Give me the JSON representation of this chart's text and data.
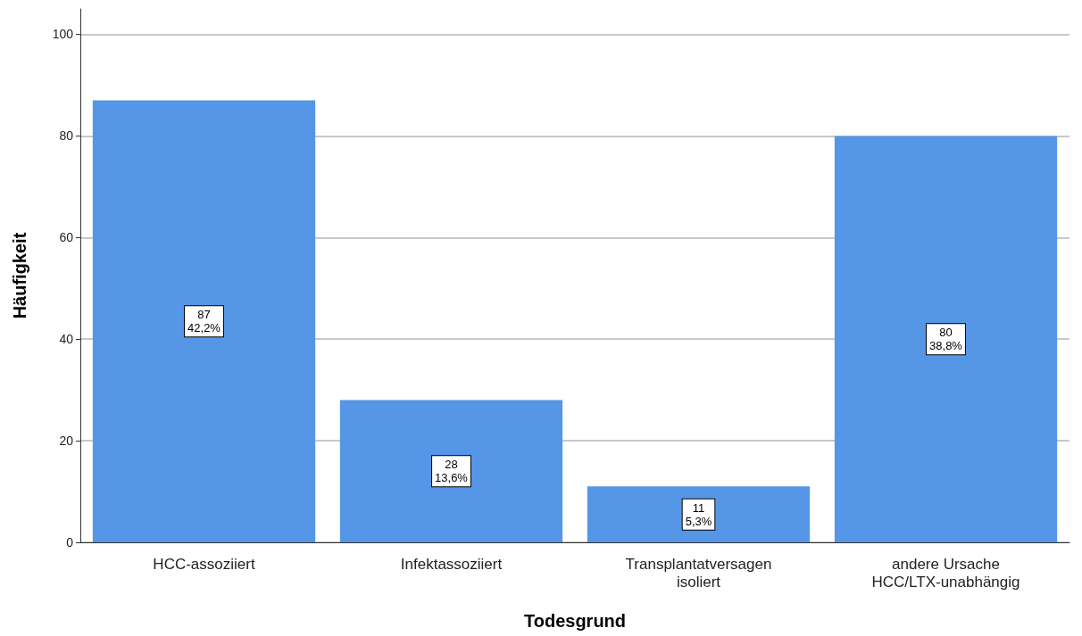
{
  "chart_data": {
    "type": "bar",
    "xlabel": "Todesgrund",
    "ylabel": "Häufigkeit",
    "categories": [
      "HCC-assoziiert",
      "Infektassoziiert",
      "Transplantatversagen\nisoliert",
      "andere Ursache\nHCC/LTX-unabhängig"
    ],
    "values": [
      87,
      28,
      11,
      80
    ],
    "value_labels": [
      "87\n42,2%",
      "28\n13,6%",
      "11\n5,3%",
      "80\n38,8%"
    ],
    "color": "#5596e6",
    "ylim": [
      0,
      105
    ],
    "yticks": [
      0,
      20,
      40,
      60,
      80,
      100
    ],
    "grid": "y"
  }
}
